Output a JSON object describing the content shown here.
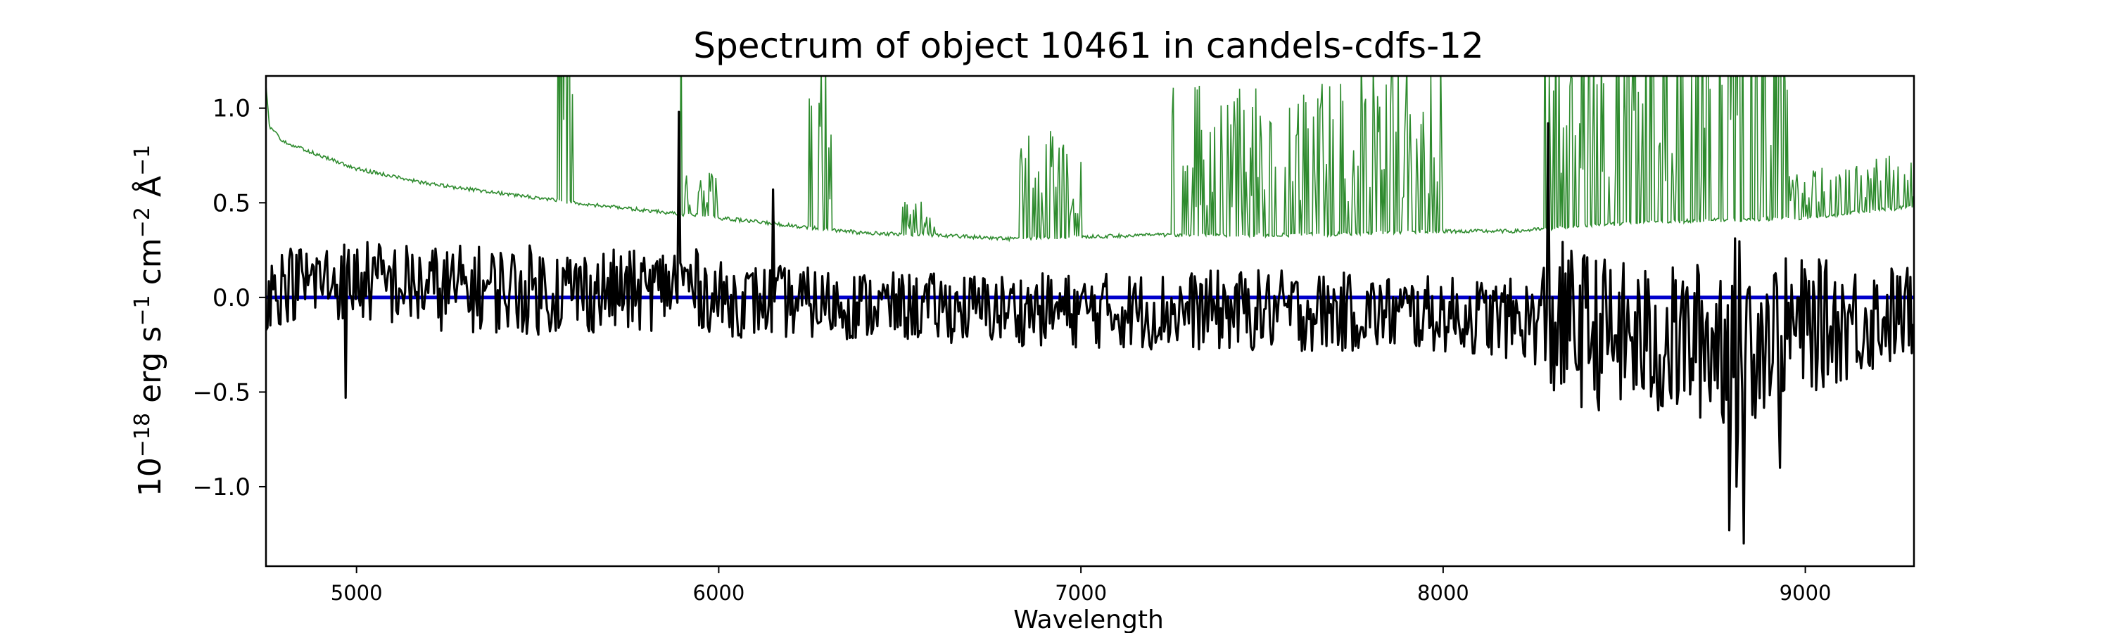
{
  "chart_data": {
    "type": "line",
    "title": "Spectrum of object 10461 in candels-cdfs-12",
    "xlabel": "Wavelength",
    "ylabel_parts": [
      "10",
      "−18",
      " erg s",
      "−1",
      " cm",
      "−2",
      " Å",
      "−1"
    ],
    "xlim": [
      4750,
      9300
    ],
    "ylim": [
      -1.42,
      1.17
    ],
    "x_ticks": [
      5000,
      6000,
      7000,
      8000,
      9000
    ],
    "x_tick_labels": [
      "5000",
      "6000",
      "7000",
      "8000",
      "9000"
    ],
    "y_ticks": [
      1.0,
      0.5,
      0.0,
      -0.5,
      -1.0
    ],
    "y_tick_labels": [
      "1.0",
      "0.5",
      "0.0",
      "−0.5",
      "−1.0"
    ],
    "grid": false,
    "colors": {
      "flux": "#000000",
      "error": "#2e8b2e",
      "model": "#0000cc"
    },
    "series": [
      {
        "id": "flux",
        "x_step": 4,
        "anchors": [
          [
            4750,
            0.15
          ],
          [
            4800,
            0.2
          ],
          [
            4900,
            0.22
          ],
          [
            5000,
            0.22
          ],
          [
            5200,
            0.18
          ],
          [
            5500,
            0.17
          ],
          [
            5800,
            0.16
          ],
          [
            5900,
            0.22
          ],
          [
            6000,
            0.12
          ],
          [
            6500,
            0.08
          ],
          [
            7000,
            0.06
          ],
          [
            7500,
            0.06
          ],
          [
            8000,
            0.04
          ],
          [
            8300,
            0.0
          ],
          [
            8600,
            -0.12
          ],
          [
            8900,
            -0.05
          ],
          [
            9300,
            0.05
          ]
        ],
        "noise": [
          [
            4750,
            0.2
          ],
          [
            5000,
            0.22
          ],
          [
            5500,
            0.24
          ],
          [
            6000,
            0.2
          ],
          [
            6500,
            0.18
          ],
          [
            7000,
            0.2
          ],
          [
            7500,
            0.22
          ],
          [
            8000,
            0.2
          ],
          [
            8250,
            0.22
          ],
          [
            8300,
            0.45
          ],
          [
            8500,
            0.4
          ],
          [
            8700,
            0.42
          ],
          [
            8800,
            0.55
          ],
          [
            8900,
            0.4
          ],
          [
            9300,
            0.25
          ]
        ],
        "spikes": [
          [
            4970,
            -0.53
          ],
          [
            5890,
            0.98
          ],
          [
            6150,
            0.57
          ],
          [
            8290,
            0.92
          ],
          [
            8300,
            -0.72
          ],
          [
            8580,
            -0.7
          ],
          [
            8790,
            -1.23
          ],
          [
            8810,
            -1.0
          ],
          [
            8830,
            -1.3
          ],
          [
            8930,
            -0.9
          ],
          [
            9000,
            0.52
          ],
          [
            9100,
            0.52
          ],
          [
            9240,
            0.42
          ]
        ]
      },
      {
        "id": "error",
        "x_step": 3,
        "anchors": [
          [
            4750,
            1.12
          ],
          [
            4760,
            0.9
          ],
          [
            4800,
            0.82
          ],
          [
            4900,
            0.75
          ],
          [
            5000,
            0.68
          ],
          [
            5200,
            0.6
          ],
          [
            5400,
            0.55
          ],
          [
            5600,
            0.5
          ],
          [
            5800,
            0.46
          ],
          [
            6000,
            0.42
          ],
          [
            6200,
            0.38
          ],
          [
            6400,
            0.34
          ],
          [
            6600,
            0.33
          ],
          [
            6800,
            0.31
          ],
          [
            7000,
            0.32
          ],
          [
            7200,
            0.33
          ],
          [
            7400,
            0.33
          ],
          [
            7600,
            0.33
          ],
          [
            7800,
            0.34
          ],
          [
            8000,
            0.35
          ],
          [
            8200,
            0.35
          ],
          [
            8400,
            0.38
          ],
          [
            8600,
            0.4
          ],
          [
            8800,
            0.41
          ],
          [
            9000,
            0.42
          ],
          [
            9300,
            0.48
          ]
        ],
        "bands": [
          [
            5550,
            5600,
            0.8
          ],
          [
            5880,
            5900,
            0.6
          ],
          [
            5900,
            6000,
            0.15
          ],
          [
            6250,
            6320,
            0.5
          ],
          [
            6500,
            6600,
            0.12
          ],
          [
            6830,
            7000,
            0.3
          ],
          [
            7250,
            7750,
            0.45
          ],
          [
            7750,
            8000,
            0.5
          ],
          [
            8280,
            8600,
            0.75
          ],
          [
            8600,
            8700,
            0.7
          ],
          [
            8700,
            8950,
            0.8
          ],
          [
            8950,
            9300,
            0.15
          ]
        ]
      },
      {
        "id": "model",
        "x": [
          4750,
          9300
        ],
        "y": [
          0.0,
          0.0
        ]
      }
    ]
  }
}
